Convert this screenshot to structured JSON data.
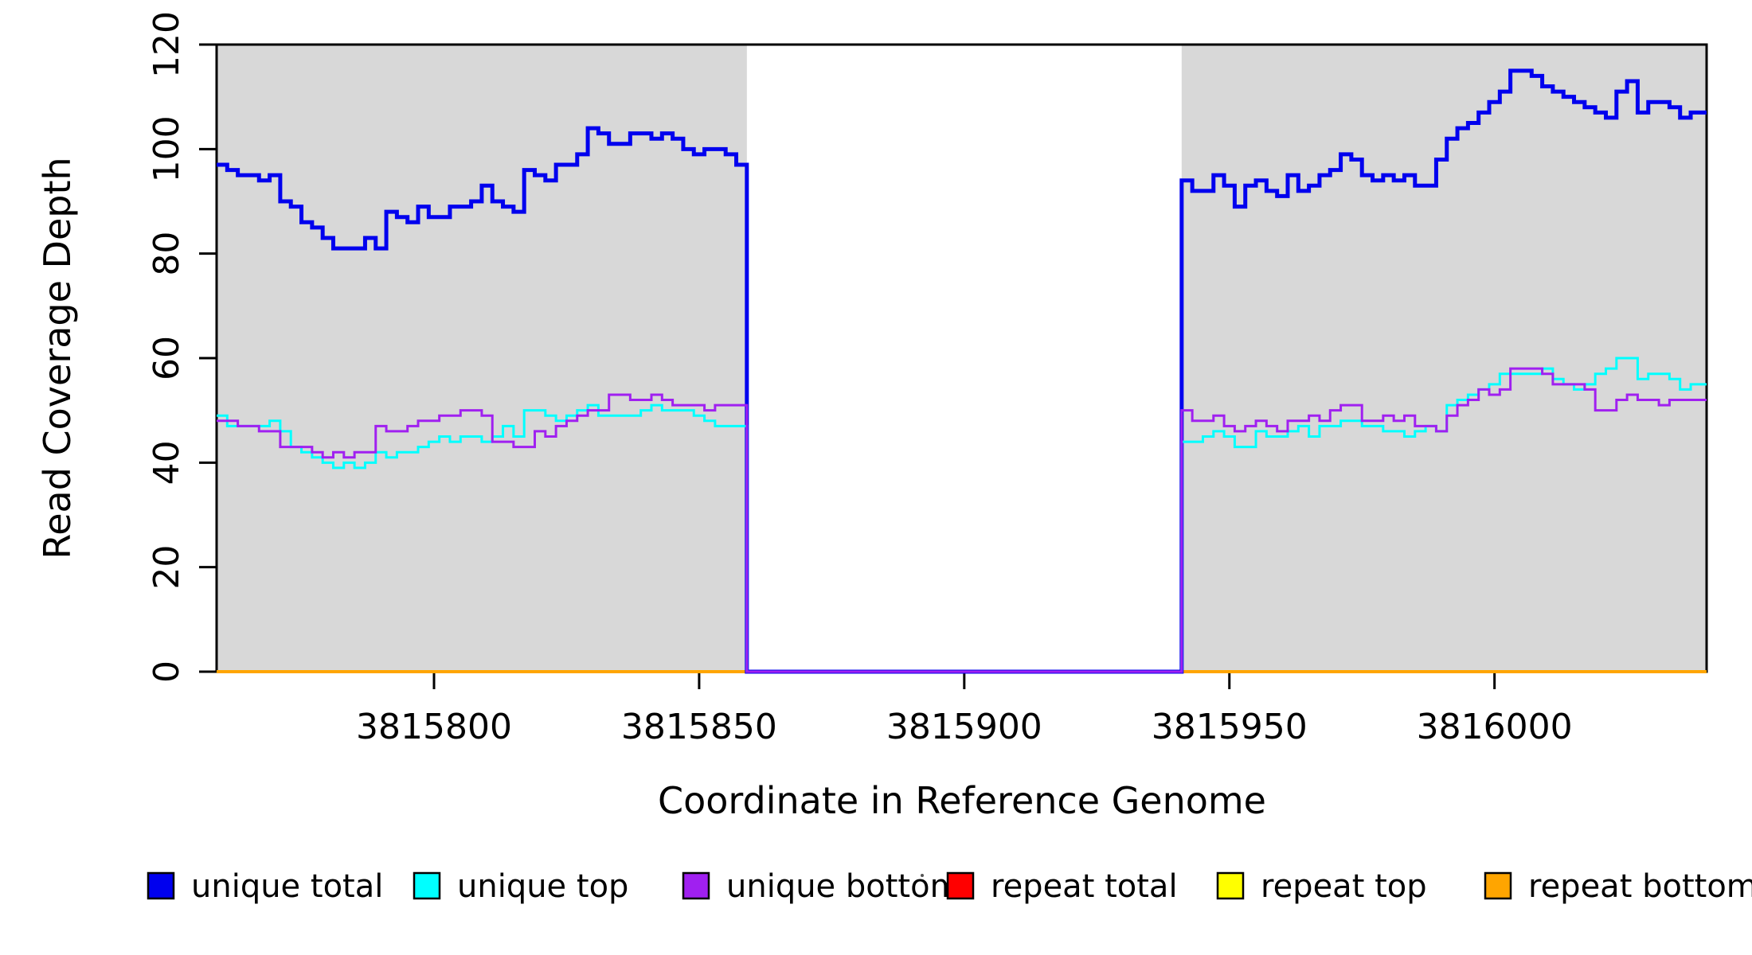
{
  "chart_data": {
    "type": "line",
    "subtype": "step-coverage",
    "title": "",
    "xlabel": "Coordinate in Reference Genome",
    "ylabel": "Read Coverage Depth",
    "xlim": [
      3815759,
      3816040
    ],
    "ylim": [
      0,
      120
    ],
    "x_ticks": [
      3815800,
      3815850,
      3815900,
      3815950,
      3816000
    ],
    "y_ticks": [
      0,
      20,
      40,
      60,
      80,
      100,
      120
    ],
    "grid": false,
    "background_color": "#ffffff",
    "shaded_region_color": "#d8d8d8",
    "shaded_regions": [
      {
        "x0": 3815759,
        "x1": 3815859
      },
      {
        "x0": 3815941,
        "x1": 3816040
      }
    ],
    "gap_region": {
      "x0": 3815859,
      "x1": 3815941,
      "note": "all series drop to 0 in this unshaded gap"
    },
    "series": [
      {
        "name": "repeat total",
        "color": "#ff0000",
        "width": 3,
        "segments": [
          {
            "x0": 3815759,
            "step": 281,
            "values": [
              0
            ]
          }
        ]
      },
      {
        "name": "repeat top",
        "color": "#ffff00",
        "width": 3,
        "segments": [
          {
            "x0": 3815759,
            "step": 281,
            "values": [
              0
            ]
          }
        ]
      },
      {
        "name": "repeat bottom",
        "color": "#ffa500",
        "width": 4,
        "segments": [
          {
            "x0": 3815759,
            "step": 281,
            "values": [
              0
            ]
          }
        ]
      },
      {
        "name": "unique total",
        "color": "#0000ee",
        "width": 5,
        "segments": [
          {
            "x0": 3815759,
            "step": 2,
            "values": [
              97,
              96,
              95,
              95,
              94,
              95,
              90,
              89,
              86,
              85,
              83,
              81,
              81,
              81,
              83,
              81,
              88,
              87,
              86,
              89,
              87,
              87,
              89,
              89,
              90,
              93,
              90,
              89,
              88,
              96,
              95,
              94,
              97,
              97,
              99,
              104,
              103,
              101,
              101,
              103,
              103,
              102,
              103,
              102,
              100,
              99,
              100,
              100,
              99,
              97,
              94
            ]
          },
          {
            "x0": 3815859,
            "step": 82,
            "values": [
              0
            ]
          },
          {
            "x0": 3815941,
            "step": 2,
            "values": [
              94,
              92,
              92,
              95,
              93,
              89,
              93,
              94,
              92,
              91,
              95,
              92,
              93,
              95,
              96,
              99,
              98,
              95,
              94,
              95,
              94,
              95,
              93,
              93,
              98,
              102,
              104,
              105,
              107,
              109,
              111,
              115,
              115,
              114,
              112,
              111,
              110,
              109,
              108,
              107,
              106,
              111,
              113,
              107,
              109,
              109,
              108,
              106,
              107,
              107
            ]
          }
        ]
      },
      {
        "name": "unique top",
        "color": "#00ffff",
        "width": 3,
        "segments": [
          {
            "x0": 3815759,
            "step": 2,
            "values": [
              49,
              47,
              47,
              47,
              47,
              48,
              46,
              43,
              42,
              41,
              40,
              39,
              40,
              39,
              40,
              42,
              41,
              42,
              42,
              43,
              44,
              45,
              44,
              45,
              45,
              44,
              45,
              47,
              45,
              50,
              50,
              49,
              48,
              49,
              50,
              51,
              49,
              49,
              49,
              49,
              50,
              51,
              50,
              50,
              50,
              49,
              48,
              47,
              47,
              47,
              44
            ]
          },
          {
            "x0": 3815859,
            "step": 82,
            "values": [
              0
            ]
          },
          {
            "x0": 3815941,
            "step": 2,
            "values": [
              44,
              44,
              45,
              46,
              45,
              43,
              43,
              46,
              45,
              45,
              46,
              47,
              45,
              47,
              47,
              48,
              48,
              47,
              47,
              46,
              46,
              45,
              46,
              47,
              46,
              51,
              52,
              53,
              54,
              55,
              57,
              57,
              57,
              57,
              58,
              56,
              55,
              54,
              55,
              57,
              58,
              60,
              60,
              56,
              57,
              57,
              56,
              54,
              55,
              55
            ]
          }
        ]
      },
      {
        "name": "unique bottom",
        "color": "#a020f0",
        "width": 3,
        "segments": [
          {
            "x0": 3815759,
            "step": 2,
            "values": [
              48,
              48,
              47,
              47,
              46,
              46,
              43,
              43,
              43,
              42,
              41,
              42,
              41,
              42,
              42,
              47,
              46,
              46,
              47,
              48,
              48,
              49,
              49,
              50,
              50,
              49,
              44,
              44,
              43,
              43,
              46,
              45,
              47,
              48,
              49,
              50,
              50,
              53,
              53,
              52,
              52,
              53,
              52,
              51,
              51,
              51,
              50,
              51,
              51,
              51,
              50
            ]
          },
          {
            "x0": 3815859,
            "step": 82,
            "values": [
              0
            ]
          },
          {
            "x0": 3815941,
            "step": 2,
            "values": [
              50,
              48,
              48,
              49,
              47,
              46,
              47,
              48,
              47,
              46,
              48,
              48,
              49,
              48,
              50,
              51,
              51,
              48,
              48,
              49,
              48,
              49,
              47,
              47,
              46,
              49,
              51,
              52,
              54,
              53,
              54,
              58,
              58,
              58,
              57,
              55,
              55,
              55,
              54,
              50,
              50,
              52,
              53,
              52,
              52,
              51,
              52,
              52,
              52,
              52
            ]
          }
        ]
      }
    ],
    "legend": {
      "position": "bottom",
      "items": [
        {
          "label": "unique total",
          "color": "#0000ee"
        },
        {
          "label": "unique top",
          "color": "#00ffff"
        },
        {
          "label": "unique bottom",
          "color": "#a020f0"
        },
        {
          "label": "repeat total",
          "color": "#ff0000"
        },
        {
          "label": "repeat top",
          "color": "#ffff00"
        },
        {
          "label": "repeat bottom",
          "color": "#ffa500"
        }
      ]
    }
  }
}
